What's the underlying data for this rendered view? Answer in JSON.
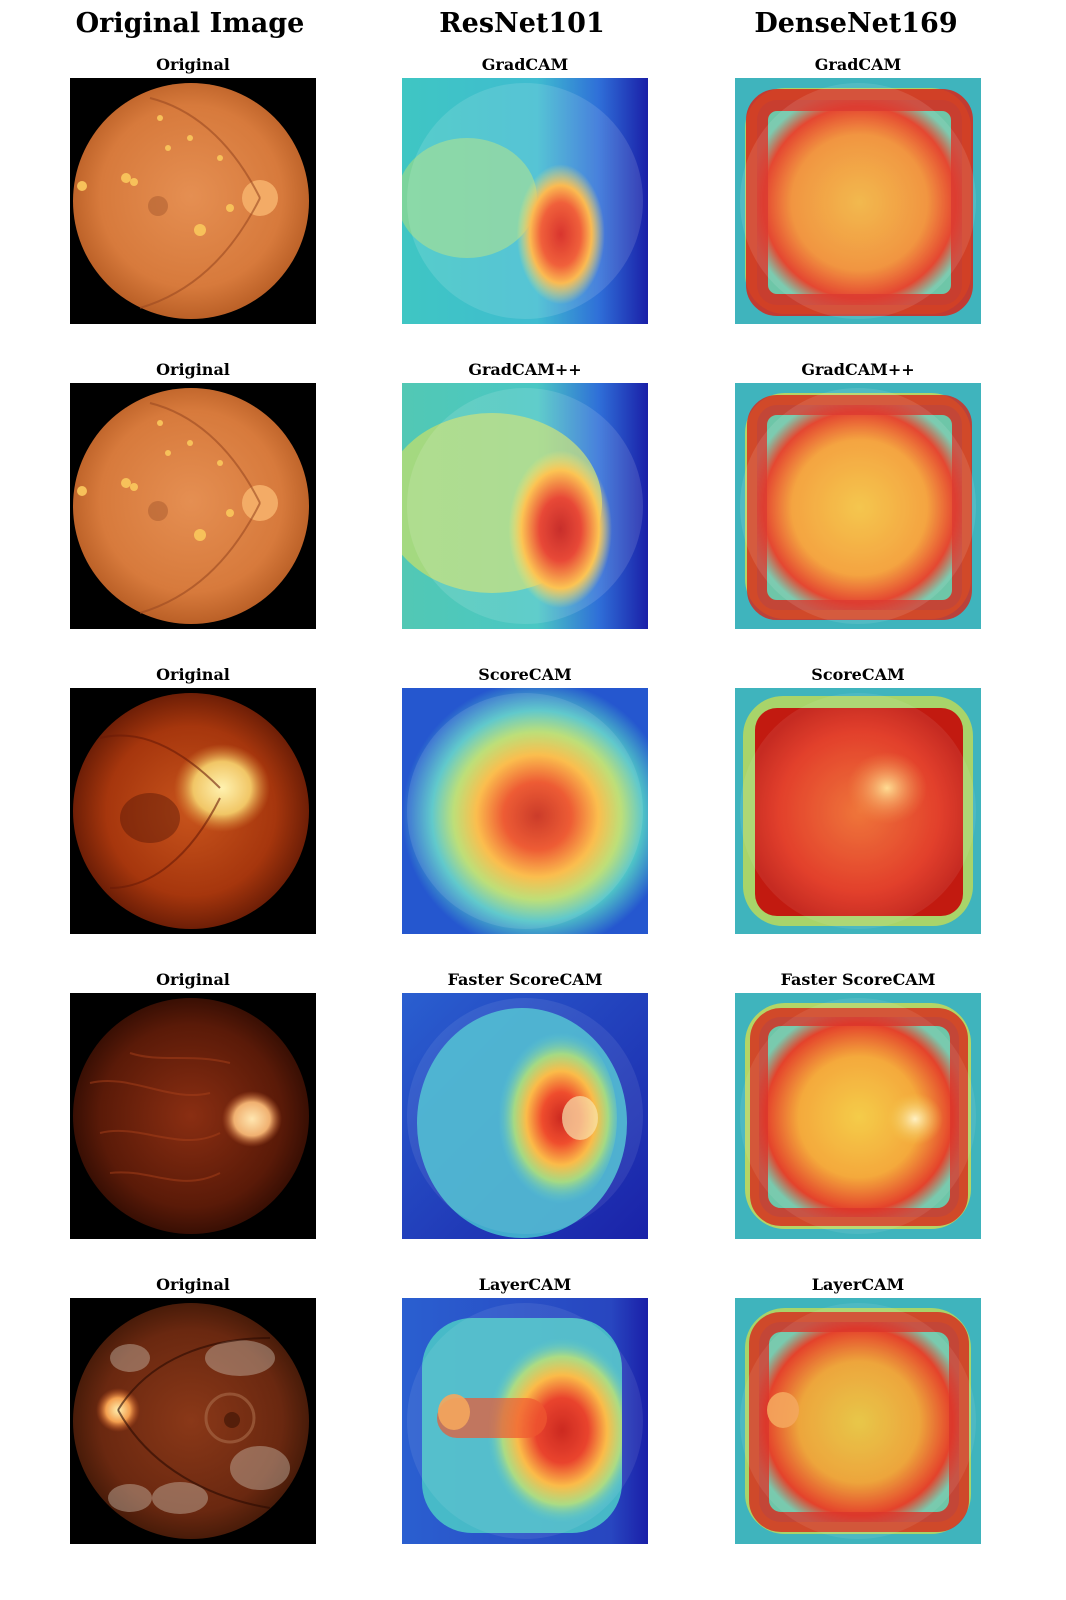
{
  "headers": {
    "original": "Original Image",
    "resnet": "ResNet101",
    "densenet": "DenseNet169"
  },
  "rows": [
    {
      "original_title": "Original",
      "resnet_title": "GradCAM",
      "densenet_title": "GradCAM"
    },
    {
      "original_title": "Original",
      "resnet_title": "GradCAM++",
      "densenet_title": "GradCAM++"
    },
    {
      "original_title": "Original",
      "resnet_title": "ScoreCAM",
      "densenet_title": "ScoreCAM"
    },
    {
      "original_title": "Original",
      "resnet_title": "Faster ScoreCAM",
      "densenet_title": "Faster ScoreCAM"
    },
    {
      "original_title": "Original",
      "resnet_title": "LayerCAM",
      "densenet_title": "LayerCAM"
    }
  ],
  "colors": {
    "heat_hot": "#d7191c",
    "heat_warm": "#fdae61",
    "heat_mid": "#ffd93d",
    "heat_cool": "#4fc3c7",
    "heat_cold": "#1a2fb5",
    "fundus_orange": "#d9824a",
    "fundus_dark": "#7a2a0c"
  }
}
